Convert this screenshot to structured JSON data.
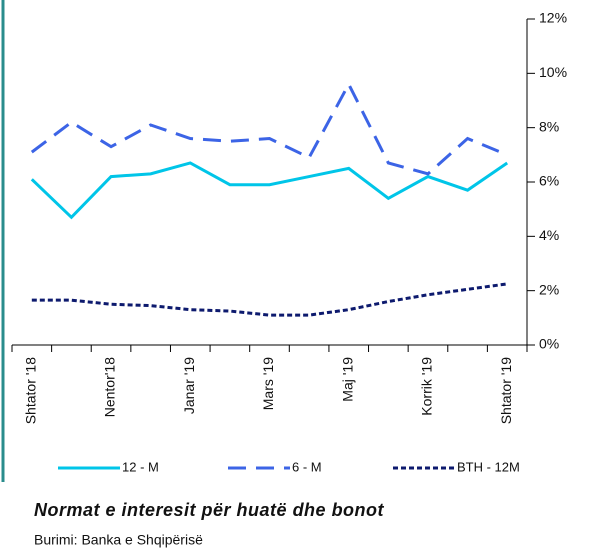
{
  "chart_data": {
    "type": "line",
    "title": "Normat e interesit për huatë dhe bonot",
    "source": "Burimi: Banka e Shqipërisë",
    "categories": [
      "Shtator '18",
      null,
      "Nentor'18",
      null,
      "Janar '19",
      null,
      "Mars '19",
      null,
      "Maj '19",
      null,
      "Korrik '19",
      null,
      "Shtator '19"
    ],
    "series": [
      {
        "name": "12 - M",
        "color": "#00c5e8",
        "dash": "solid",
        "values": [
          6.1,
          4.7,
          6.2,
          6.3,
          6.7,
          5.9,
          5.9,
          6.2,
          6.5,
          5.4,
          6.2,
          5.7,
          6.7
        ]
      },
      {
        "name": "6 - M",
        "color": "#3c64e6",
        "dash": "long",
        "values": [
          7.1,
          8.2,
          7.3,
          8.1,
          7.6,
          7.5,
          7.6,
          6.9,
          9.6,
          6.7,
          6.3,
          7.6,
          7.0
        ]
      },
      {
        "name": "BTH - 12M",
        "color": "#0d1a6e",
        "dash": "short",
        "values": [
          1.65,
          1.65,
          1.5,
          1.45,
          1.3,
          1.25,
          1.1,
          1.1,
          1.3,
          1.6,
          1.85,
          2.05,
          2.25
        ]
      }
    ],
    "ylim": [
      0,
      12
    ],
    "yticks": [
      {
        "value": 0,
        "label": "0%"
      },
      {
        "value": 2,
        "label": "2%"
      },
      {
        "value": 4,
        "label": "4%"
      },
      {
        "value": 6,
        "label": "6%"
      },
      {
        "value": 8,
        "label": "8%"
      },
      {
        "value": 10,
        "label": "10%"
      },
      {
        "value": 12,
        "label": "12%"
      }
    ],
    "y_axis_side": "right",
    "grid": false,
    "legend": "bottom"
  }
}
